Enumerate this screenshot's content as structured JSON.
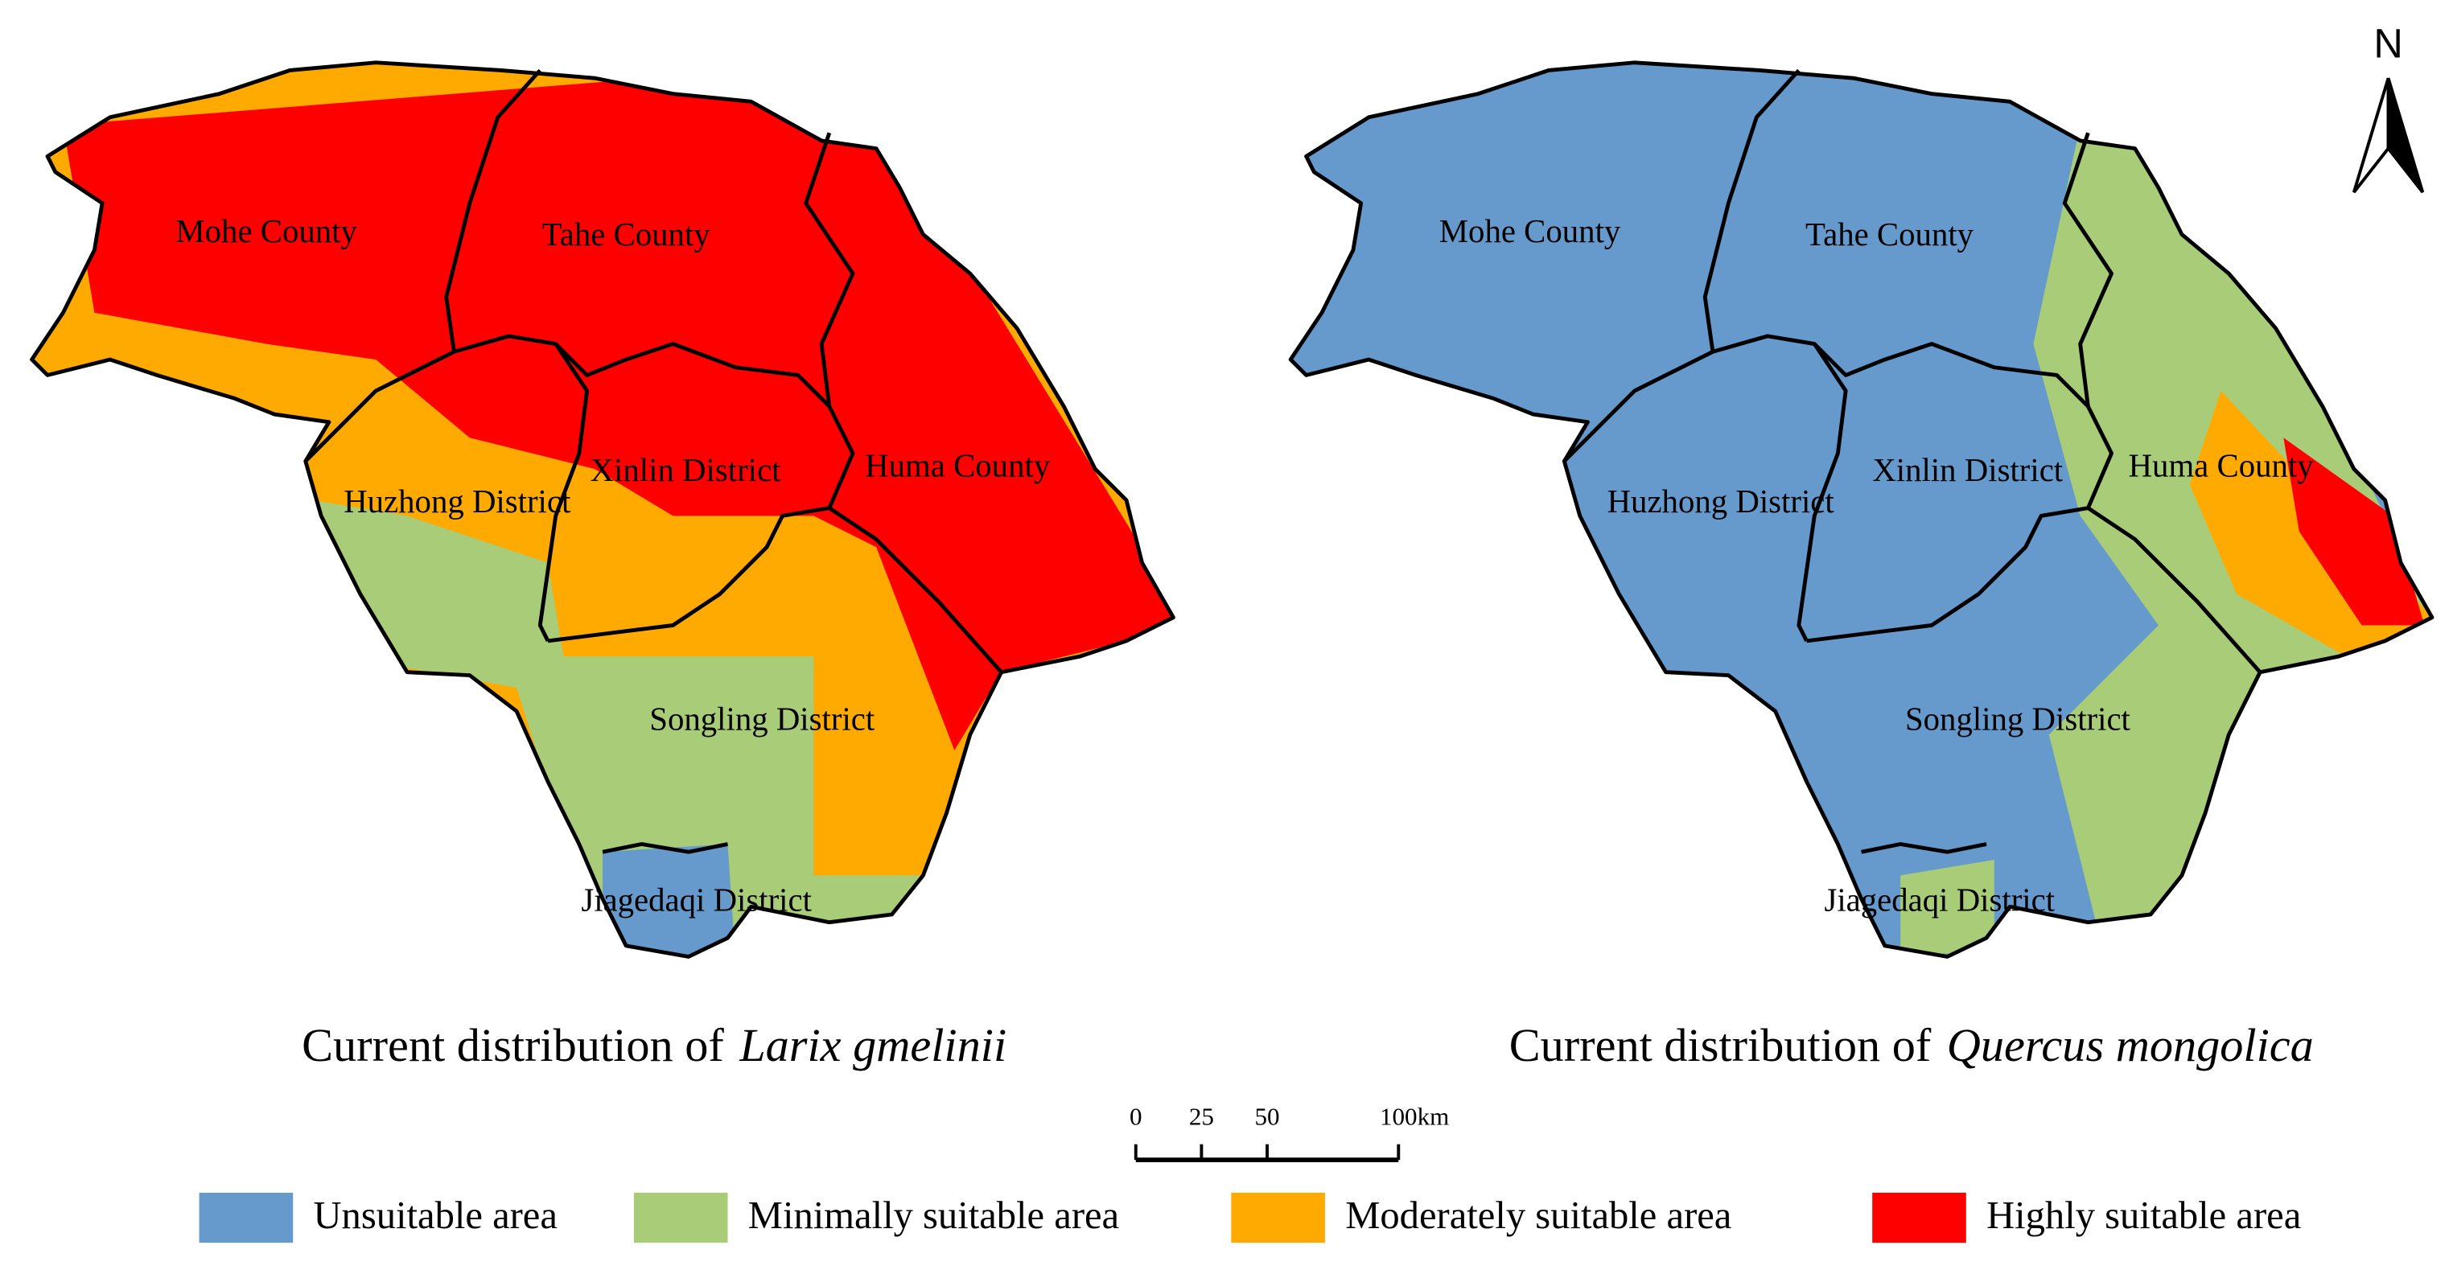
{
  "north_label": "N",
  "districts": [
    "Mohe County",
    "Tahe County",
    "Xinlin District",
    "Huma County",
    "Huzhong District",
    "Songling District",
    "Jiagedaqi District"
  ],
  "maps": [
    {
      "title": "Current distribution of",
      "species": "Larix gmelinii"
    },
    {
      "title": "Current distribution of",
      "species": "Quercus mongolica"
    }
  ],
  "scale_bar": {
    "ticks": [
      0,
      25,
      50,
      100
    ],
    "unit": "km"
  },
  "legend": [
    {
      "label": "Unsuitable area",
      "color": "#6699cc"
    },
    {
      "label": "Minimally suitable area",
      "color": "#a8cc78"
    },
    {
      "label": "Moderately suitable area",
      "color": "#ffaa00"
    },
    {
      "label": "Highly suitable area",
      "color": "#ff0000"
    }
  ]
}
